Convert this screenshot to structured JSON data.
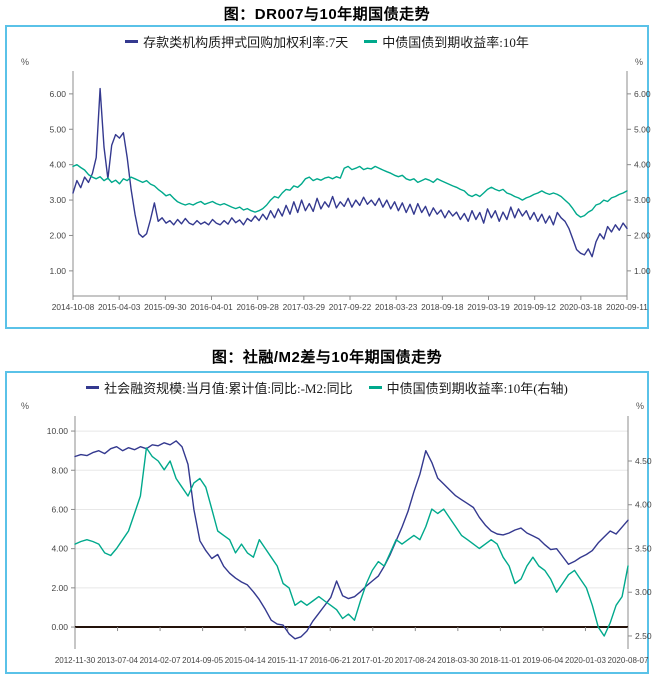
{
  "chart_data": [
    {
      "type": "line",
      "title": "图：DR007与10年期国债走势",
      "pct": "%",
      "frame_color": "#5ac2e8",
      "legend": [
        {
          "label": "存款类机构质押式回购加权利率:7天",
          "color": "#34398f"
        },
        {
          "label": "中债国债到期收益率:10年",
          "color": "#00a98c"
        }
      ],
      "left_axis": {
        "min": 0.29,
        "max": 6.42,
        "ticks": [
          6,
          5,
          4,
          3,
          2,
          1
        ],
        "tick_labels": [
          "6.00",
          "5.00",
          "4.00",
          "3.00",
          "2.00",
          "1.00"
        ]
      },
      "right_axis": {
        "min": 0.29,
        "max": 6.42,
        "ticks": [
          6,
          5,
          4,
          3,
          2,
          1
        ],
        "tick_labels": [
          "6.00",
          "5.00",
          "4.00",
          "3.00",
          "2.00",
          "1.00"
        ]
      },
      "x_labels": [
        "2014-10-08",
        "2015-04-03",
        "2015-09-30",
        "2016-04-01",
        "2016-09-28",
        "2017-03-29",
        "2017-09-22",
        "2018-03-23",
        "2018-09-18",
        "2019-03-19",
        "2019-09-12",
        "2020-03-18",
        "2020-09-11"
      ],
      "grid_vals": [],
      "zero_val": null,
      "series": [
        {
          "name": "存款类机构质押式回购加权利率:7天",
          "axis": "left",
          "color": "#34398f",
          "values": [
            3.2,
            3.55,
            3.35,
            3.65,
            3.5,
            3.75,
            4.2,
            6.15,
            4.5,
            3.6,
            4.55,
            4.85,
            4.75,
            4.9,
            4.2,
            3.3,
            2.6,
            2.05,
            1.95,
            2.05,
            2.45,
            2.92,
            2.4,
            2.5,
            2.35,
            2.42,
            2.3,
            2.45,
            2.33,
            2.48,
            2.35,
            2.3,
            2.42,
            2.32,
            2.38,
            2.3,
            2.45,
            2.35,
            2.3,
            2.42,
            2.32,
            2.5,
            2.36,
            2.44,
            2.3,
            2.48,
            2.4,
            2.55,
            2.42,
            2.6,
            2.45,
            2.7,
            2.5,
            2.75,
            2.55,
            2.85,
            2.6,
            2.95,
            2.65,
            3.0,
            2.7,
            2.9,
            2.68,
            3.05,
            2.75,
            2.95,
            2.8,
            3.1,
            2.78,
            2.95,
            2.82,
            3.05,
            2.8,
            3.0,
            2.85,
            3.08,
            2.88,
            3.0,
            2.85,
            3.05,
            2.8,
            3.0,
            2.75,
            2.95,
            2.7,
            2.92,
            2.65,
            2.88,
            2.6,
            2.9,
            2.65,
            2.82,
            2.55,
            2.78,
            2.6,
            2.72,
            2.5,
            2.7,
            2.55,
            2.66,
            2.45,
            2.62,
            2.4,
            2.7,
            2.45,
            2.65,
            2.35,
            2.75,
            2.5,
            2.7,
            2.4,
            2.66,
            2.45,
            2.8,
            2.5,
            2.75,
            2.55,
            2.7,
            2.45,
            2.65,
            2.4,
            2.6,
            2.35,
            2.55,
            2.3,
            2.65,
            2.5,
            2.4,
            2.2,
            1.9,
            1.6,
            1.5,
            1.45,
            1.62,
            1.4,
            1.82,
            2.05,
            1.9,
            2.25,
            2.1,
            2.3,
            2.15,
            2.35,
            2.2
          ]
        },
        {
          "name": "中债国债到期收益率:10年",
          "axis": "left",
          "color": "#00a98c",
          "values": [
            3.95,
            4.0,
            3.92,
            3.85,
            3.72,
            3.65,
            3.6,
            3.66,
            3.55,
            3.62,
            3.5,
            3.56,
            3.46,
            3.6,
            3.55,
            3.65,
            3.6,
            3.55,
            3.5,
            3.55,
            3.45,
            3.4,
            3.3,
            3.22,
            3.12,
            3.16,
            3.05,
            2.95,
            2.9,
            2.86,
            2.9,
            2.86,
            2.92,
            2.96,
            2.88,
            2.92,
            2.96,
            2.9,
            2.86,
            2.9,
            2.85,
            2.8,
            2.76,
            2.8,
            2.72,
            2.76,
            2.7,
            2.66,
            2.7,
            2.76,
            2.86,
            3.0,
            3.1,
            3.06,
            3.2,
            3.3,
            3.28,
            3.4,
            3.36,
            3.46,
            3.6,
            3.65,
            3.55,
            3.6,
            3.56,
            3.62,
            3.65,
            3.6,
            3.66,
            3.62,
            3.9,
            3.95,
            3.86,
            3.9,
            3.95,
            3.86,
            3.9,
            3.88,
            3.95,
            3.9,
            3.85,
            3.8,
            3.76,
            3.7,
            3.66,
            3.7,
            3.6,
            3.56,
            3.6,
            3.5,
            3.55,
            3.6,
            3.56,
            3.5,
            3.6,
            3.55,
            3.5,
            3.45,
            3.4,
            3.36,
            3.3,
            3.26,
            3.15,
            3.1,
            3.16,
            3.1,
            3.2,
            3.3,
            3.36,
            3.3,
            3.26,
            3.3,
            3.2,
            3.16,
            3.1,
            3.06,
            3.0,
            3.06,
            3.1,
            3.16,
            3.2,
            3.26,
            3.2,
            3.16,
            3.2,
            3.16,
            3.1,
            3.0,
            2.9,
            2.76,
            2.6,
            2.52,
            2.56,
            2.66,
            2.72,
            2.86,
            2.9,
            3.0,
            2.96,
            3.06,
            3.1,
            3.16,
            3.2,
            3.26
          ]
        }
      ]
    },
    {
      "type": "line",
      "title": "图：社融/M2差与10年期国债走势",
      "pct": "%",
      "frame_color": "#5ac2e8",
      "legend": [
        {
          "label": "社会融资规模:当月值:累计值:同比:-M2:同比",
          "color": "#34398f"
        },
        {
          "label": "中债国债到期收益率:10年(右轴)",
          "color": "#00a98c"
        }
      ],
      "left_axis": {
        "min": -1.12,
        "max": 10.36,
        "ticks": [
          10,
          8,
          6,
          4,
          2,
          0
        ],
        "tick_labels": [
          "10.00",
          "8.00",
          "6.00",
          "4.00",
          "2.00",
          "0.00"
        ]
      },
      "right_axis": {
        "min": 2.351,
        "max": 4.923,
        "ticks": [
          4.5,
          4.0,
          3.5,
          3.0,
          2.5
        ],
        "tick_labels": [
          "4.50",
          "4.00",
          "3.50",
          "3.00",
          "2.50"
        ]
      },
      "x_labels": [
        "2012-11-30",
        "2013-07-04",
        "2014-02-07",
        "2014-09-05",
        "2015-04-14",
        "2015-11-17",
        "2016-06-21",
        "2017-01-20",
        "2017-08-24",
        "2018-03-30",
        "2018-11-01",
        "2019-06-04",
        "2020-01-03",
        "2020-08-07"
      ],
      "grid_vals": [
        10,
        8,
        6,
        4,
        2
      ],
      "zero_val": 0,
      "series": [
        {
          "name": "社会融资规模:当月值:累计值:同比:-M2:同比",
          "axis": "left",
          "color": "#34398f",
          "values": [
            8.7,
            8.8,
            8.75,
            8.9,
            9.0,
            8.85,
            9.1,
            9.2,
            9.0,
            9.15,
            9.05,
            9.2,
            9.1,
            9.3,
            9.25,
            9.4,
            9.3,
            9.5,
            9.2,
            8.3,
            6.0,
            4.4,
            3.9,
            3.5,
            3.7,
            3.1,
            2.75,
            2.5,
            2.3,
            2.15,
            1.8,
            1.4,
            0.9,
            0.35,
            0.15,
            0.1,
            -0.35,
            -0.6,
            -0.5,
            -0.2,
            0.3,
            0.7,
            1.1,
            1.5,
            2.35,
            1.6,
            1.45,
            1.55,
            1.8,
            2.1,
            2.35,
            2.6,
            3.1,
            3.7,
            4.4,
            5.1,
            5.9,
            6.9,
            7.8,
            9.0,
            8.4,
            7.6,
            7.3,
            7.0,
            6.7,
            6.5,
            6.3,
            6.1,
            5.6,
            5.2,
            4.9,
            4.75,
            4.7,
            4.8,
            4.95,
            5.05,
            4.8,
            4.65,
            4.5,
            4.2,
            3.95,
            4.0,
            3.6,
            3.2,
            3.35,
            3.55,
            3.7,
            3.9,
            4.3,
            4.6,
            4.9,
            4.75,
            5.1,
            5.45
          ]
        },
        {
          "name": "中债国债到期收益率:10年(右轴)",
          "axis": "right",
          "color": "#00a98c",
          "values": [
            3.55,
            3.58,
            3.6,
            3.58,
            3.55,
            3.45,
            3.42,
            3.5,
            3.6,
            3.7,
            3.9,
            4.1,
            4.65,
            4.55,
            4.5,
            4.4,
            4.5,
            4.3,
            4.2,
            4.1,
            4.25,
            4.3,
            4.2,
            3.95,
            3.7,
            3.65,
            3.6,
            3.45,
            3.55,
            3.45,
            3.4,
            3.6,
            3.5,
            3.4,
            3.3,
            3.1,
            3.05,
            2.85,
            2.9,
            2.85,
            2.9,
            2.95,
            2.9,
            2.85,
            2.8,
            2.7,
            2.75,
            2.68,
            2.9,
            3.1,
            3.25,
            3.35,
            3.3,
            3.45,
            3.6,
            3.55,
            3.6,
            3.65,
            3.6,
            3.75,
            3.95,
            3.9,
            3.95,
            3.85,
            3.75,
            3.65,
            3.6,
            3.55,
            3.5,
            3.55,
            3.6,
            3.55,
            3.4,
            3.3,
            3.1,
            3.15,
            3.3,
            3.4,
            3.3,
            3.25,
            3.15,
            3.0,
            3.1,
            3.2,
            3.25,
            3.15,
            3.05,
            2.85,
            2.6,
            2.5,
            2.65,
            2.85,
            2.95,
            3.3
          ]
        }
      ]
    }
  ]
}
